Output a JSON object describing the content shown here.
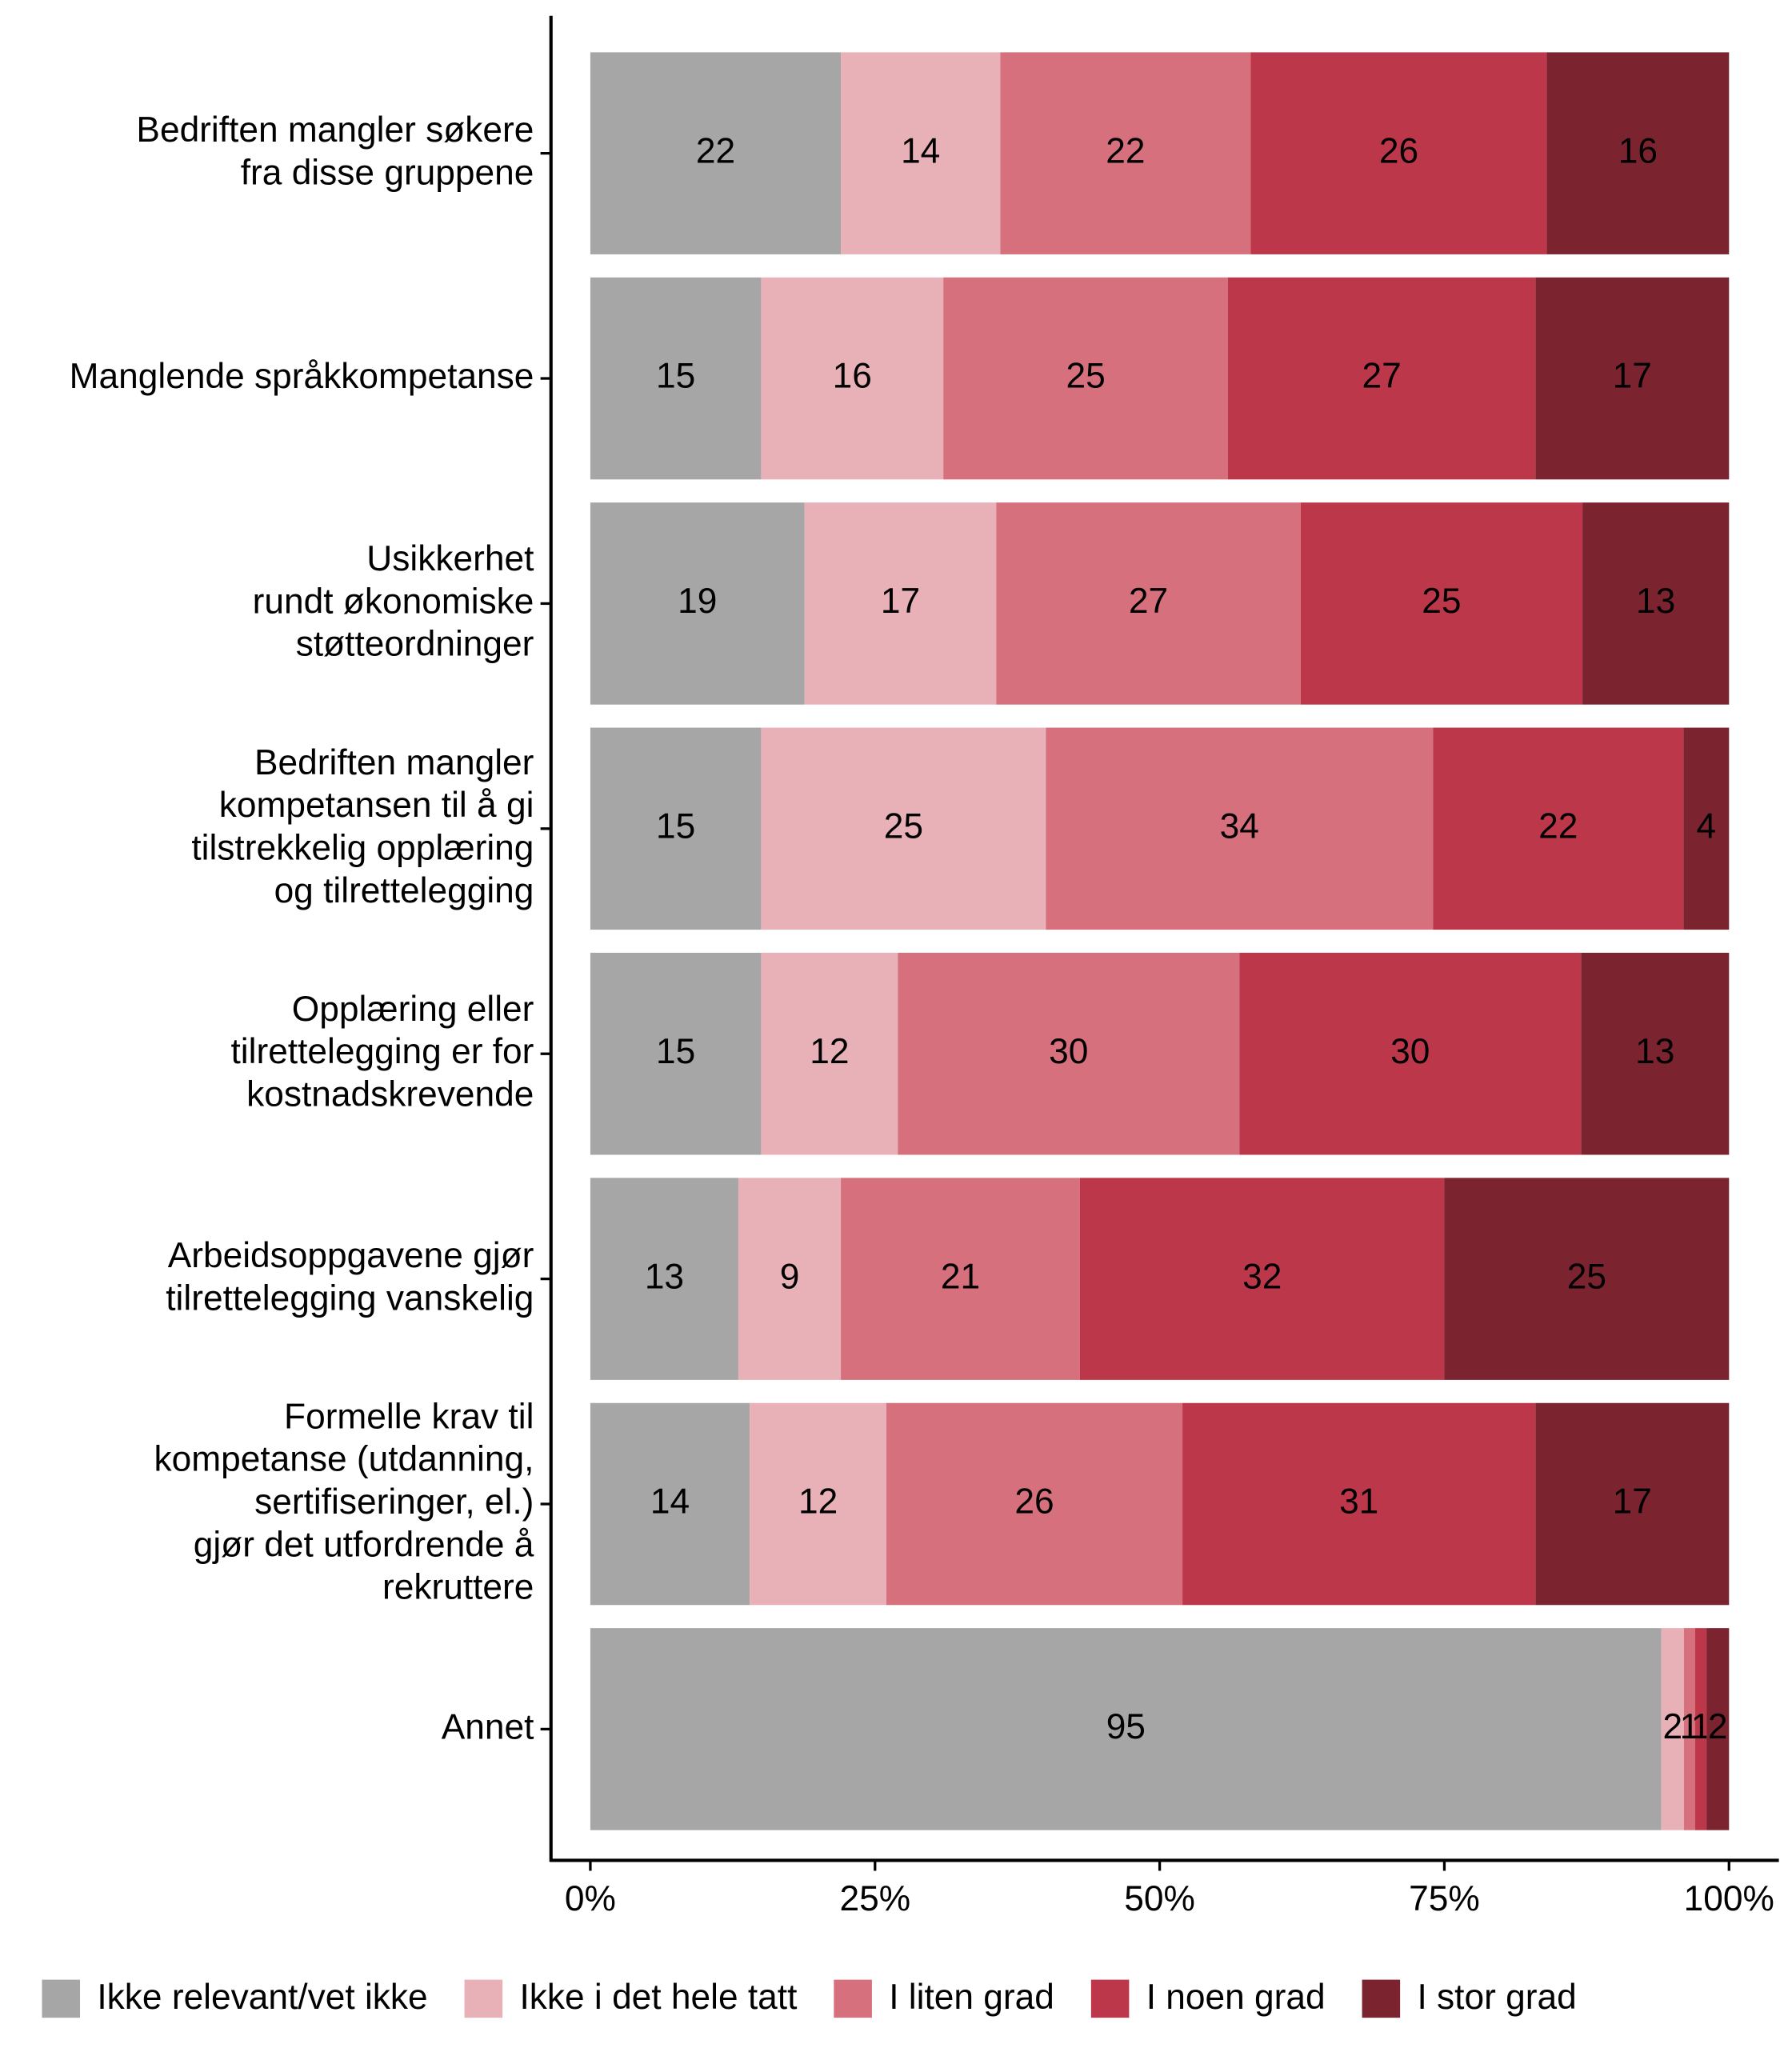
{
  "chart_data": {
    "type": "bar",
    "orientation": "horizontal",
    "stacked": "percent",
    "categories": [
      "Bedriften mangler søkere\nfra disse gruppene",
      "Manglende språkkompetanse",
      "Usikkerhet\nrundt økonomiske\nstøtteordninger",
      "Bedriften mangler\nkompetansen til å gi\ntilstrekkelig opplæring\nog tilrettelegging",
      "Opplæring eller\ntilrettelegging er for\nkostnadskrevende",
      "Arbeidsoppgavene gjør\ntilrettelegging vanskelig",
      "Formelle krav til\nkompetanse (utdanning,\nsertifiseringer, el.)\ngjør det utfordrende å\nrekruttere",
      "Annet"
    ],
    "series": [
      {
        "name": "Ikke relevant/vet ikke",
        "color": "#a6a6a6",
        "label_color": "#000000",
        "values": [
          22,
          15,
          19,
          15,
          15,
          13,
          14,
          95
        ]
      },
      {
        "name": "Ikke i det hele tatt",
        "color": "#e8b1b7",
        "label_color": "#000000",
        "values": [
          14,
          16,
          17,
          25,
          12,
          9,
          12,
          2
        ]
      },
      {
        "name": "I liten grad",
        "color": "#d6707c",
        "label_color": "#000000",
        "values": [
          22,
          25,
          27,
          34,
          30,
          21,
          26,
          1
        ]
      },
      {
        "name": "I noen grad",
        "color": "#bd374a",
        "label_color": "#ffffff",
        "values": [
          26,
          27,
          25,
          22,
          30,
          32,
          31,
          1
        ]
      },
      {
        "name": "I stor grad",
        "color": "#7b2430",
        "label_color": "#ffffff",
        "values": [
          16,
          17,
          13,
          4,
          13,
          25,
          17,
          2
        ]
      }
    ],
    "xlim": [
      0,
      100
    ],
    "xticks": [
      {
        "value": 0,
        "label": "0%"
      },
      {
        "value": 25,
        "label": "25%"
      },
      {
        "value": 50,
        "label": "50%"
      },
      {
        "value": 75,
        "label": "75%"
      },
      {
        "value": 100,
        "label": "100%"
      }
    ],
    "legend": "bottom"
  }
}
